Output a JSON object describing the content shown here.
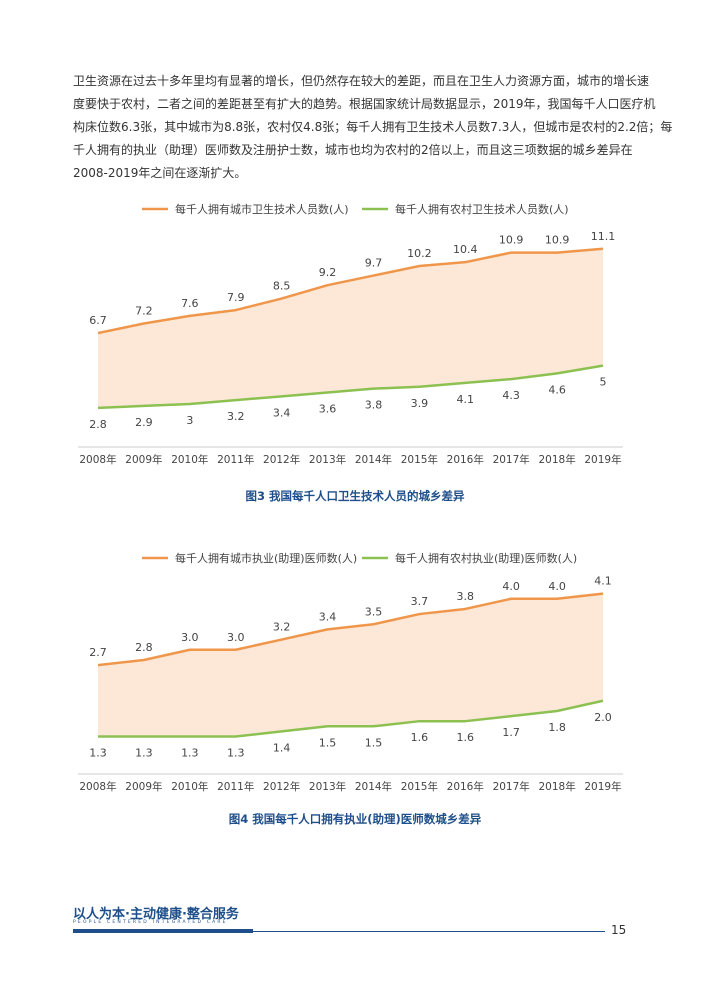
{
  "paragraph": {
    "lines": [
      "卫生资源在过去十多年里均有显著的增长，但仍然存在较大的差距，而且在卫生人力资源方面，城市的增长速",
      "度要快于农村，二者之间的差距甚至有扩大的趋势。根据国家统计局数据显示，2019年，我国每千人口医疗机",
      "构床位数6.3张，其中城市为8.8张，农村仅4.8张；每千人拥有卫生技术人员数7.3人，但城市是农村的2.2倍；每",
      "千人拥有的执业（助理）医师数及注册护士数，城市也均为农村的2倍以上，而且这三项数据的城乡差异在",
      "2008-2019年之间在逐渐扩大。"
    ]
  },
  "colors": {
    "urban": "#f0964a",
    "rural": "#8cc152",
    "fill": "#fde8d8",
    "caption": "#1f4f8a"
  },
  "chart_data": [
    {
      "type": "line",
      "categories": [
        "2008年",
        "2009年",
        "2010年",
        "2011年",
        "2012年",
        "2013年",
        "2014年",
        "2015年",
        "2016年",
        "2017年",
        "2018年",
        "2019年"
      ],
      "series": [
        {
          "name": "每千人拥有城市卫生技术人员数(人)",
          "values": [
            6.7,
            7.2,
            7.6,
            7.9,
            8.5,
            9.2,
            9.7,
            10.2,
            10.4,
            10.9,
            10.9,
            11.1
          ],
          "labels": [
            "6.7",
            "7.2",
            "7.6",
            "7.9",
            "8.5",
            "9.2",
            "9.7",
            "10.2",
            "10.4",
            "10.9",
            "10.9",
            "11.1"
          ]
        },
        {
          "name": "每千人拥有农村卫生技术人员数(人)",
          "values": [
            2.8,
            2.9,
            3,
            3.2,
            3.4,
            3.6,
            3.8,
            3.9,
            4.1,
            4.3,
            4.6,
            5
          ],
          "labels": [
            "2.8",
            "2.9",
            "3",
            "3.2",
            "3.4",
            "3.6",
            "3.8",
            "3.9",
            "4.1",
            "4.3",
            "4.6",
            "5"
          ]
        }
      ],
      "title": "图3 我国每千人口卫生技术人员的城乡差异",
      "ylim": [
        1.8,
        11.4
      ],
      "legend": "top",
      "grid": false
    },
    {
      "type": "line",
      "categories": [
        "2008年",
        "2009年",
        "2010年",
        "2011年",
        "2012年",
        "2013年",
        "2014年",
        "2015年",
        "2016年",
        "2017年",
        "2018年",
        "2019年"
      ],
      "series": [
        {
          "name": "每千人拥有城市执业(助理)医师数(人)",
          "values": [
            2.7,
            2.8,
            3.0,
            3.0,
            3.2,
            3.4,
            3.5,
            3.7,
            3.8,
            4.0,
            4.0,
            4.1
          ],
          "labels": [
            "2.7",
            "2.8",
            "3.0",
            "3.0",
            "3.2",
            "3.4",
            "3.5",
            "3.7",
            "3.8",
            "4.0",
            "4.0",
            "4.1"
          ]
        },
        {
          "name": "每千人拥有农村执业(助理)医师数(人)",
          "values": [
            1.3,
            1.3,
            1.3,
            1.3,
            1.4,
            1.5,
            1.5,
            1.6,
            1.6,
            1.7,
            1.8,
            2.0
          ],
          "labels": [
            "1.3",
            "1.3",
            "1.3",
            "1.3",
            "1.4",
            "1.5",
            "1.5",
            "1.6",
            "1.6",
            "1.7",
            "1.8",
            "2.0"
          ]
        }
      ],
      "title": "图4 我国每千人口拥有执业(助理)医师数城乡差异",
      "ylim": [
        0.8,
        4.25
      ],
      "legend": "top",
      "grid": false
    }
  ],
  "footer": {
    "title": "以人为本·主动健康·整合服务",
    "subtitle": "PEOPLE CENTERED INTEGRATED CARE",
    "page": "15"
  }
}
